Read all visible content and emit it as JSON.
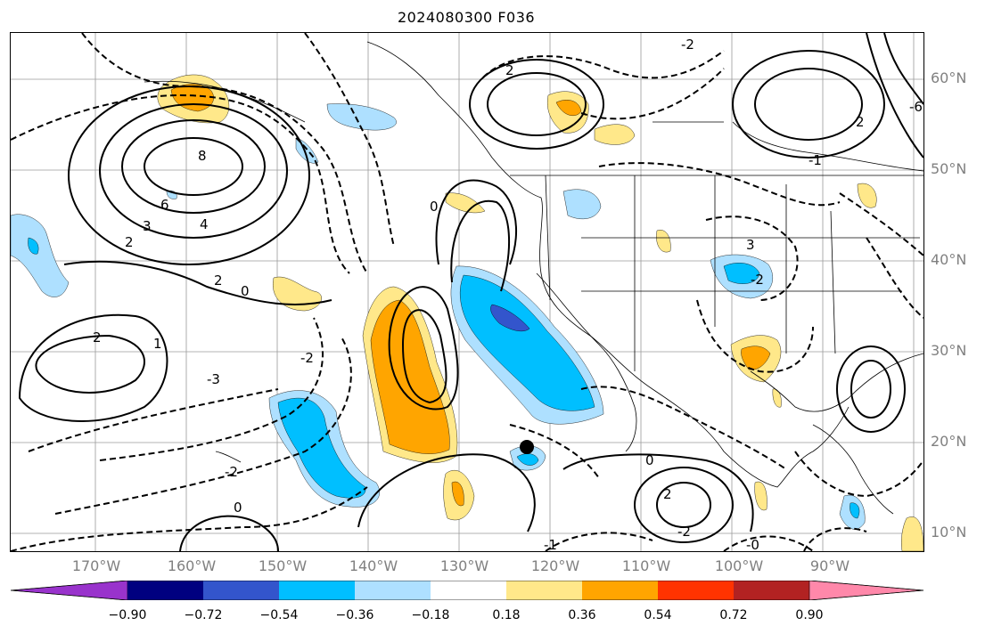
{
  "title": "2024080300 F036",
  "lat_labels": [
    "60°N",
    "50°N",
    "40°N",
    "30°N",
    "20°N",
    "10°N"
  ],
  "lon_labels": [
    "170°W",
    "160°W",
    "150°W",
    "140°W",
    "130°W",
    "120°W",
    "110°W",
    "100°W",
    "90°W"
  ],
  "contour_labels": [
    "8",
    "6",
    "4",
    "3",
    "2",
    "2",
    "2",
    "1",
    "0",
    "0",
    "-3",
    "-2",
    "-2",
    "-1",
    "0",
    "-2",
    "2",
    "3",
    "-2",
    "2",
    "-6",
    "2",
    "-2",
    "-1",
    "-0",
    "0"
  ],
  "colorbar": {
    "ticks": [
      "−0.90",
      "−0.72",
      "−0.54",
      "−0.36",
      "−0.18",
      "0.18",
      "0.36",
      "0.54",
      "0.72",
      "0.90"
    ],
    "colors": [
      "#9933cc",
      "#000080",
      "#3355cc",
      "#00bfff",
      "#aee0ff",
      "#ffffff",
      "#ffe88a",
      "#ffa500",
      "#ff3300",
      "#b22222",
      "#ff88aa"
    ]
  },
  "fill_colors": {
    "light_blue": "#aee0ff",
    "blue": "#00bfff",
    "mid_blue": "#3355cc",
    "light_yellow": "#ffe88a",
    "orange": "#ffa500"
  }
}
